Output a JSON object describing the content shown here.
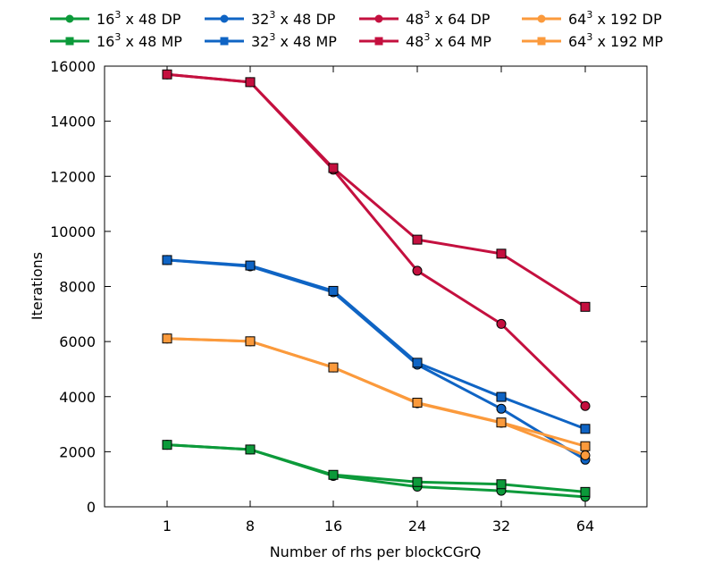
{
  "chart_data": {
    "type": "line",
    "xlabel": "Number of rhs per blockCGrQ",
    "ylabel": "Iterations",
    "categories": [
      "1",
      "8",
      "16",
      "24",
      "32",
      "64"
    ],
    "ylim": [
      0,
      16000
    ],
    "yticks": [
      0,
      2000,
      4000,
      6000,
      8000,
      10000,
      12000,
      14000,
      16000
    ],
    "grid": false,
    "legend_position": "top",
    "series": [
      {
        "name_base": "16",
        "name_exp": "3",
        "name_rest": " x 48 DP",
        "color": "#0c9a3a",
        "marker": "circle",
        "values": [
          2250,
          2080,
          1120,
          730,
          580,
          360
        ]
      },
      {
        "name_base": "16",
        "name_exp": "3",
        "name_rest": " x 48 MP",
        "color": "#0c9a3a",
        "marker": "square",
        "values": [
          2250,
          2080,
          1160,
          900,
          820,
          540
        ]
      },
      {
        "name_base": "32",
        "name_exp": "3",
        "name_rest": " x 48 DP",
        "color": "#0f64c4",
        "marker": "circle",
        "values": [
          8960,
          8730,
          7790,
          5160,
          3560,
          1710
        ]
      },
      {
        "name_base": "32",
        "name_exp": "3",
        "name_rest": " x 48 MP",
        "color": "#0f64c4",
        "marker": "square",
        "values": [
          8960,
          8760,
          7840,
          5230,
          3990,
          2830
        ]
      },
      {
        "name_base": "48",
        "name_exp": "3",
        "name_rest": " x 64 DP",
        "color": "#c4103f",
        "marker": "circle",
        "values": [
          15700,
          15420,
          12240,
          8570,
          6640,
          3660
        ]
      },
      {
        "name_base": "48",
        "name_exp": "3",
        "name_rest": " x 64 MP",
        "color": "#c4103f",
        "marker": "square",
        "values": [
          15700,
          15420,
          12300,
          9700,
          9190,
          7260
        ]
      },
      {
        "name_base": "64",
        "name_exp": "3",
        "name_rest": " x 192 DP",
        "color": "#fb9a3c",
        "marker": "circle",
        "values": [
          6110,
          6010,
          5060,
          3760,
          3050,
          1870
        ]
      },
      {
        "name_base": "64",
        "name_exp": "3",
        "name_rest": " x 192 MP",
        "color": "#fb9a3c",
        "marker": "square",
        "values": [
          6110,
          6010,
          5060,
          3780,
          3060,
          2200
        ]
      }
    ]
  }
}
